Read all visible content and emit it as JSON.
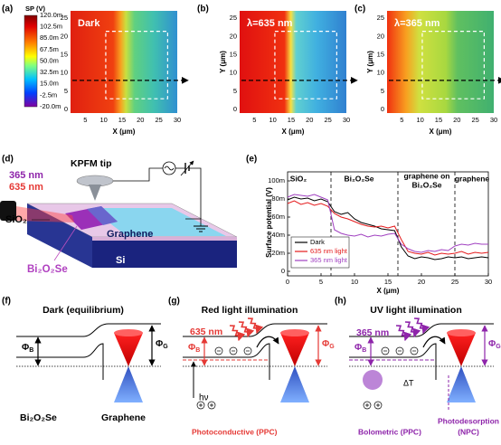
{
  "panel_labels": [
    "(a)",
    "(b)",
    "(c)",
    "(d)",
    "(e)",
    "(f)",
    "(g)",
    "(h)"
  ],
  "colorbar": {
    "title": "SP (V)",
    "labels": [
      "120.0m",
      "102.5m",
      "85.0m",
      "67.5m",
      "50.0m",
      "32.5m",
      "15.0m",
      "-2.5m",
      "-20.0m"
    ]
  },
  "maps": [
    {
      "title": "Dark",
      "x_label": "X (μm)",
      "x_ticks": [
        5,
        10,
        15,
        20,
        25,
        30
      ],
      "y_ticks": [
        0,
        5,
        10,
        15,
        20,
        25
      ]
    },
    {
      "title": "λ=635 nm",
      "x_label": "X (μm)",
      "y_label": "Y (μm)",
      "x_ticks": [
        5,
        10,
        15,
        20,
        25,
        30
      ],
      "y_ticks": [
        0,
        5,
        10,
        15,
        20,
        25
      ]
    },
    {
      "title": "λ=365 nm",
      "x_label": "X (μm)",
      "y_label": "Y (μm)",
      "x_ticks": [
        5,
        10,
        15,
        20,
        25,
        30
      ],
      "y_ticks": [
        0,
        5,
        10,
        15,
        20,
        25
      ]
    }
  ],
  "schematic": {
    "wavelengths": [
      "365 nm",
      "635 nm"
    ],
    "tip": "KPFM tip",
    "sio2": "SiO₂",
    "graphene": "Graphene",
    "flake": "Bi₂O₂Se",
    "substrate": "Si"
  },
  "chart_data": {
    "type": "line",
    "x_label": "X (μm)",
    "y_label": "Surface potential (V)",
    "regions": [
      [
        "SiO₂"
      ],
      [
        "Bi₂O₂Se"
      ],
      [
        "graphene on",
        "Bi₂O₂Se"
      ],
      [
        "graphene"
      ]
    ],
    "x": [
      0,
      1,
      2,
      3,
      4,
      5,
      6,
      7,
      8,
      9,
      10,
      11,
      12,
      13,
      14,
      15,
      16,
      17,
      18,
      19,
      20,
      21,
      22,
      23,
      24,
      25,
      26,
      27,
      28,
      29,
      30
    ],
    "xlim": [
      0,
      30
    ],
    "xticks": [
      0,
      5,
      10,
      15,
      20,
      25,
      30
    ],
    "ylim": [
      -0.005,
      0.11
    ],
    "yticks": [
      0,
      {
        "value": 0.02,
        "label": "20m"
      },
      {
        "value": 0.04,
        "label": "40m"
      },
      {
        "value": 0.06,
        "label": "60m"
      },
      {
        "value": 0.08,
        "label": "80m"
      },
      {
        "value": 0.1,
        "label": "100m"
      }
    ],
    "series": [
      {
        "name": "Dark",
        "color": "#000000",
        "values": [
          0.079,
          0.082,
          0.08,
          0.081,
          0.078,
          0.08,
          0.077,
          0.066,
          0.063,
          0.065,
          0.058,
          0.054,
          0.052,
          0.05,
          0.047,
          0.046,
          0.045,
          0.027,
          0.017,
          0.014,
          0.016,
          0.015,
          0.013,
          0.014,
          0.016,
          0.015,
          0.016,
          0.014,
          0.015,
          0.016,
          0.015
        ]
      },
      {
        "name": "635 nm light",
        "color": "#e41a1c",
        "values": [
          0.075,
          0.078,
          0.074,
          0.076,
          0.073,
          0.075,
          0.072,
          0.064,
          0.06,
          0.058,
          0.055,
          0.052,
          0.05,
          0.049,
          0.05,
          0.048,
          0.05,
          0.035,
          0.022,
          0.02,
          0.019,
          0.021,
          0.018,
          0.02,
          0.019,
          0.02,
          0.022,
          0.019,
          0.021,
          0.02,
          0.021
        ]
      },
      {
        "name": "365 nm light",
        "color": "#a040c0",
        "values": [
          0.082,
          0.085,
          0.084,
          0.083,
          0.085,
          0.082,
          0.079,
          0.046,
          0.042,
          0.04,
          0.039,
          0.041,
          0.038,
          0.04,
          0.039,
          0.041,
          0.042,
          0.03,
          0.025,
          0.022,
          0.021,
          0.023,
          0.022,
          0.024,
          0.023,
          0.028,
          0.03,
          0.029,
          0.031,
          0.03,
          0.03
        ]
      }
    ]
  },
  "band_diagrams": [
    {
      "title": "Dark (equilibrium)",
      "phi_b": {
        "symbol": "Φ",
        "sub": "B"
      },
      "phi_g": {
        "symbol": "Φ",
        "sub": "G"
      },
      "left": "Bi₂O₂Se",
      "right": "Graphene"
    },
    {
      "title": "Red light illumination",
      "wavelength": "635 nm",
      "phi_b": {
        "symbol": "Φ",
        "sub": "B"
      },
      "phi_g": {
        "symbol": "Φ",
        "sub": "G"
      },
      "photon": "hν",
      "mechanism": "Photoconductive (PPC)"
    },
    {
      "title": "UV light illumination",
      "wavelength": "365 nm",
      "phi_b": {
        "symbol": "Φ",
        "sub": "B"
      },
      "phi_g": {
        "symbol": "Φ",
        "sub": "G"
      },
      "delta_t": "ΔT",
      "mechanism": "Bolometric (PPC)",
      "desorption": [
        "Photodesorption",
        "(NPC)"
      ]
    }
  ]
}
